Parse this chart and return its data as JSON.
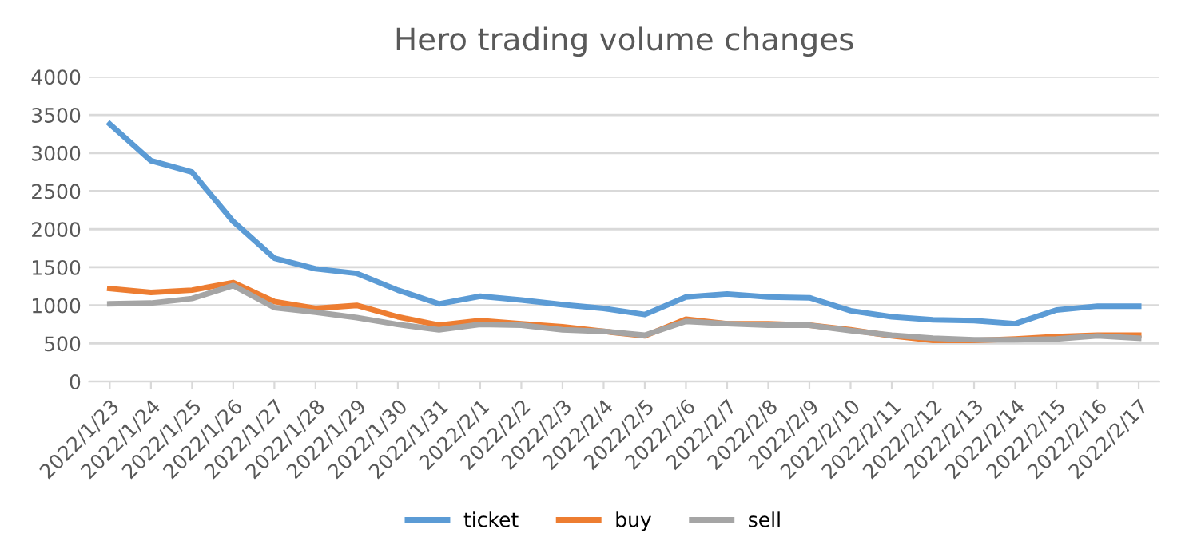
{
  "chart_data": {
    "type": "line",
    "title": "Hero trading volume changes",
    "categories": [
      "2022/1/23",
      "2022/1/24",
      "2022/1/25",
      "2022/1/26",
      "2022/1/27",
      "2022/1/28",
      "2022/1/29",
      "2022/1/30",
      "2022/1/31",
      "2022/2/1",
      "2022/2/2",
      "2022/2/3",
      "2022/2/4",
      "2022/2/5",
      "2022/2/6",
      "2022/2/7",
      "2022/2/8",
      "2022/2/9",
      "2022/2/10",
      "2022/2/11",
      "2022/2/12",
      "2022/2/13",
      "2022/2/14",
      "2022/2/15",
      "2022/2/16",
      "2022/2/17"
    ],
    "series": [
      {
        "name": "ticket",
        "color": "#5b9bd5",
        "values": [
          3380,
          2900,
          2750,
          2100,
          1620,
          1480,
          1420,
          1200,
          1020,
          1120,
          1070,
          1010,
          960,
          880,
          1110,
          1150,
          1110,
          1100,
          930,
          850,
          810,
          800,
          760,
          940,
          990,
          990
        ]
      },
      {
        "name": "buy",
        "color": "#ed7d31",
        "values": [
          1220,
          1170,
          1200,
          1300,
          1050,
          960,
          1000,
          850,
          740,
          800,
          760,
          720,
          660,
          600,
          820,
          760,
          760,
          740,
          680,
          600,
          540,
          540,
          560,
          590,
          610,
          610
        ]
      },
      {
        "name": "sell",
        "color": "#a5a5a5",
        "values": [
          1020,
          1030,
          1090,
          1260,
          970,
          910,
          840,
          750,
          680,
          750,
          740,
          680,
          660,
          610,
          790,
          760,
          740,
          740,
          670,
          610,
          570,
          550,
          550,
          560,
          600,
          570
        ]
      }
    ],
    "ylim": [
      0,
      4000
    ],
    "yticks": [
      0,
      500,
      1000,
      1500,
      2000,
      2500,
      3000,
      3500,
      4000
    ],
    "grid": "y",
    "legend": "bottom",
    "marker": "none",
    "line_style": "solid"
  }
}
